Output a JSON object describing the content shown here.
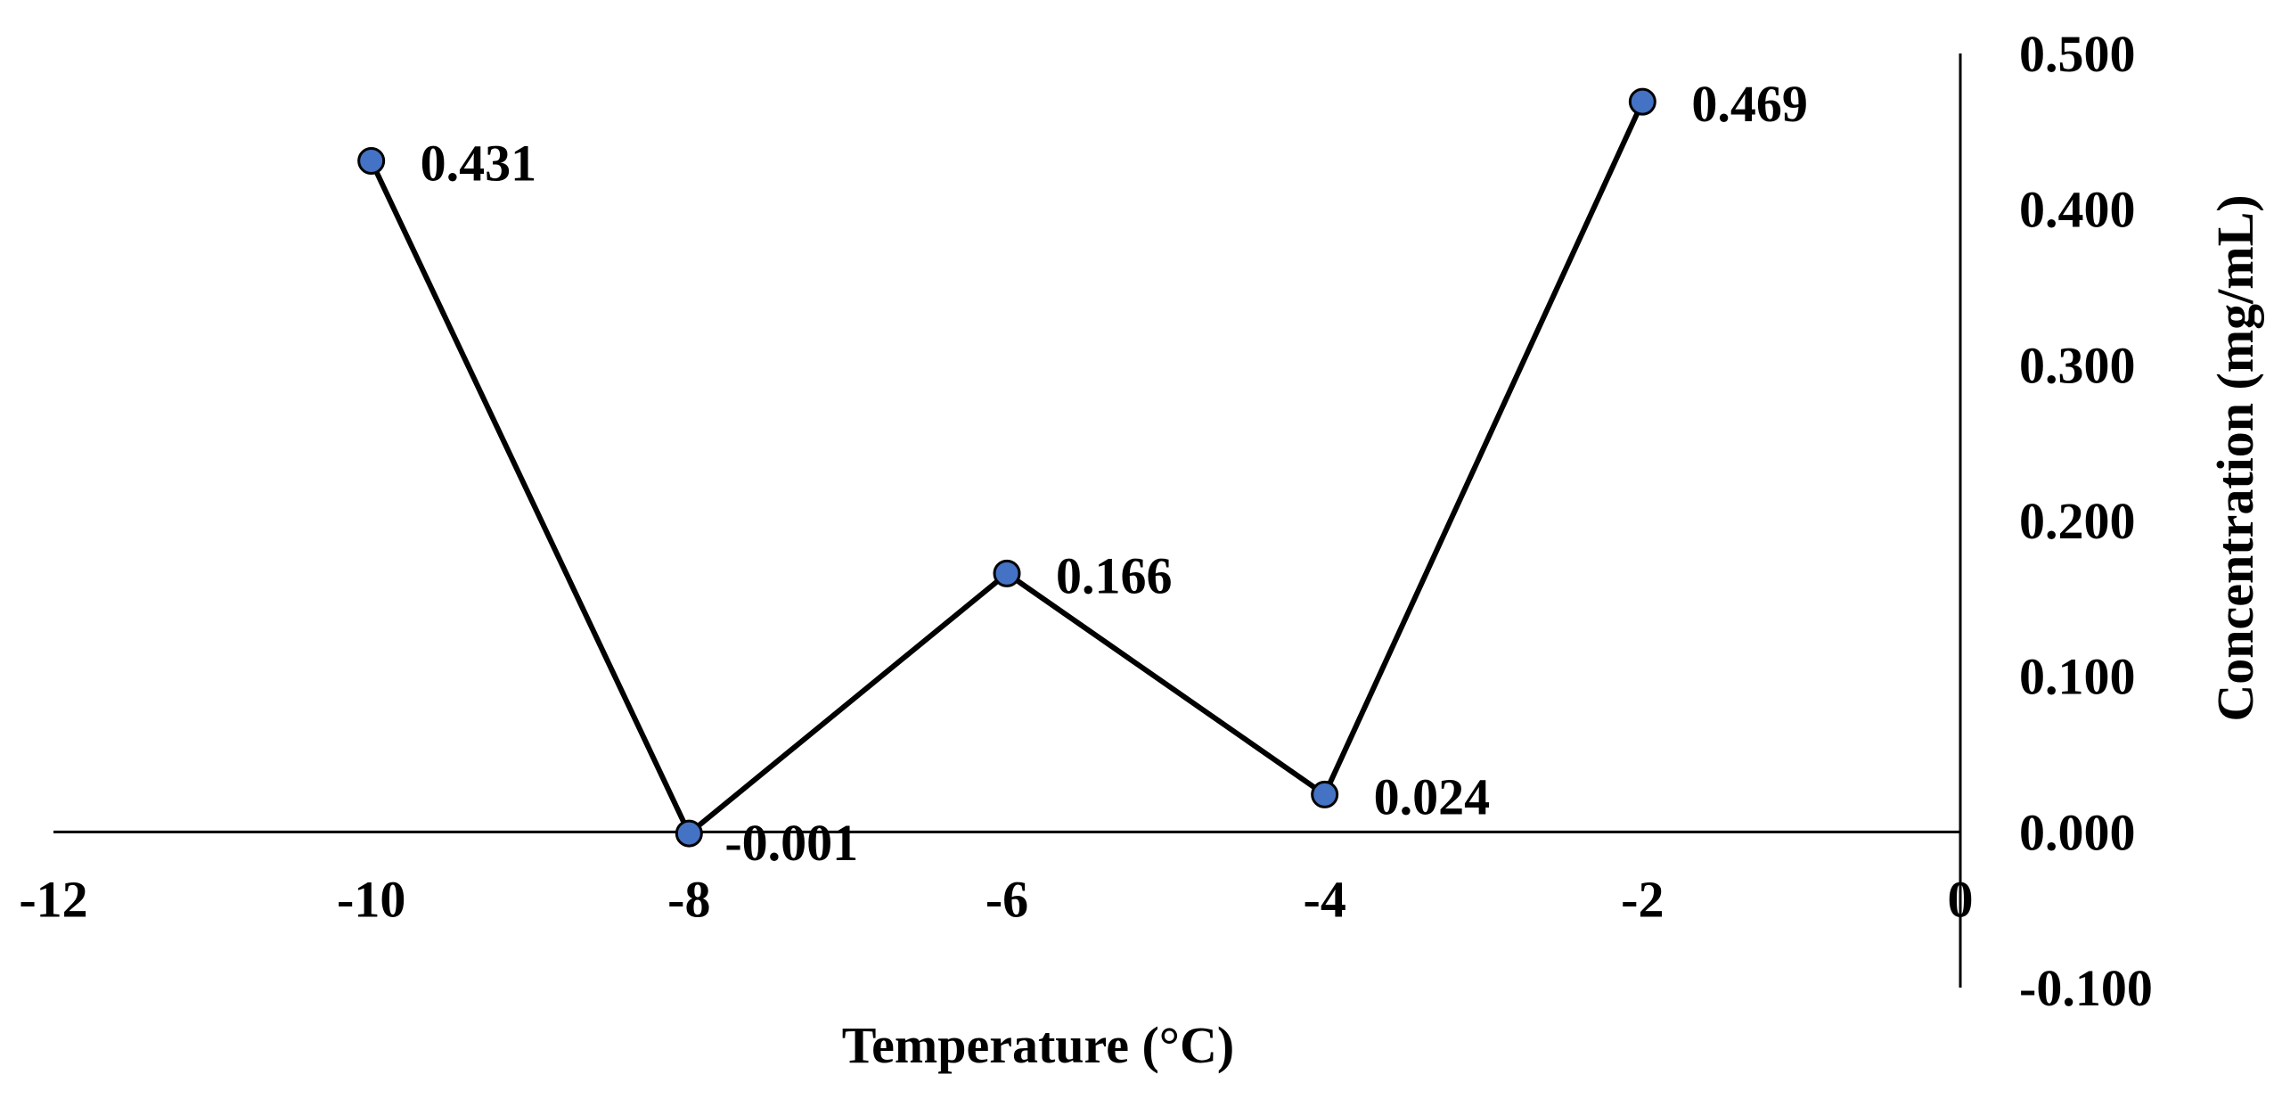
{
  "chart_data": {
    "type": "line",
    "title": "",
    "xlabel": "Temperature (°C)",
    "ylabel": "Concentration (mg/mL)",
    "xlim": [
      -12,
      0
    ],
    "ylim": [
      -0.1,
      0.5
    ],
    "x_ticks": [
      "-12",
      "-10",
      "-8",
      "-6",
      "-4",
      "-2",
      "0"
    ],
    "x_tick_values": [
      -12,
      -10,
      -8,
      -6,
      -4,
      -2,
      0
    ],
    "y_ticks": [
      "0.500",
      "0.400",
      "0.300",
      "0.200",
      "0.100",
      "0.000",
      "-0.100"
    ],
    "y_tick_values": [
      0.5,
      0.4,
      0.3,
      0.2,
      0.1,
      0.0,
      -0.1
    ],
    "grid": false,
    "legend": "none",
    "series": [
      {
        "name": "Concentration",
        "x": [
          -10,
          -8,
          -6,
          -4,
          -2
        ],
        "values": [
          0.431,
          -0.001,
          0.166,
          0.024,
          0.469
        ],
        "labels": [
          "0.431",
          "-0.001",
          "0.166",
          "0.024",
          "0.469"
        ]
      }
    ],
    "colors": {
      "marker": "#4472C4",
      "line": "#000000"
    }
  }
}
